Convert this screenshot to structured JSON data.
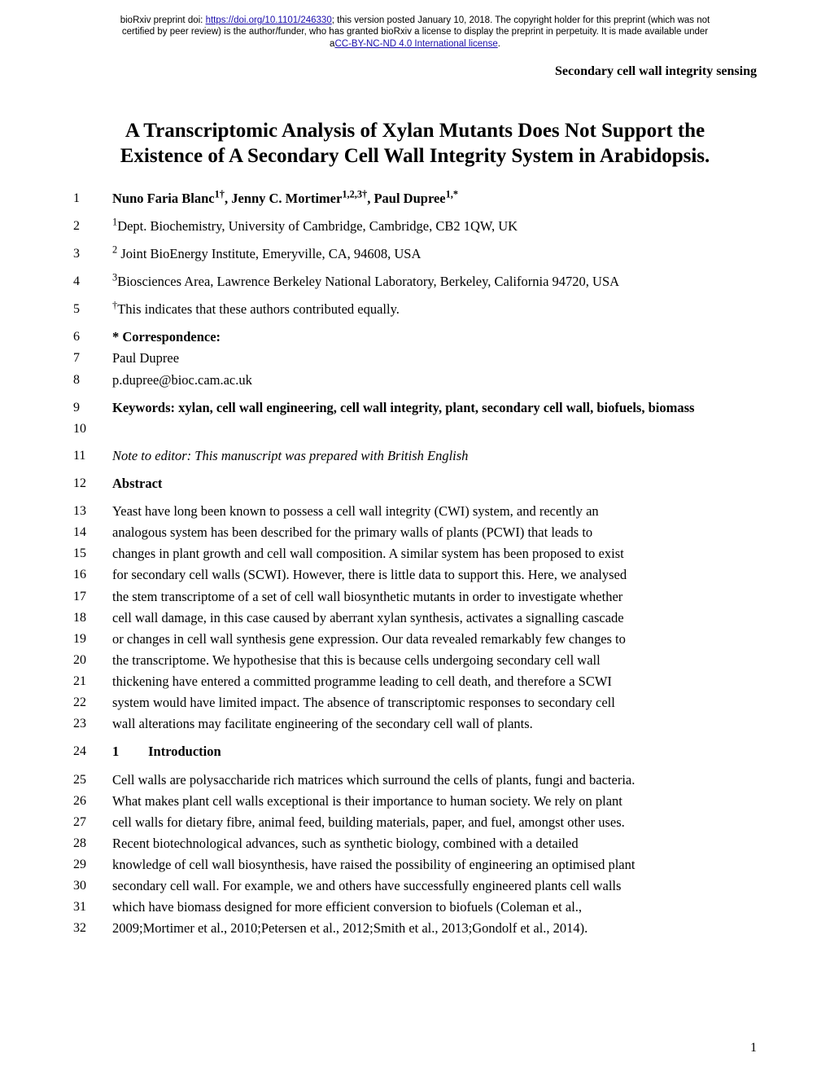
{
  "preprint": {
    "line1_prefix": "bioRxiv preprint doi: ",
    "doi_url": "https://doi.org/10.1101/246330",
    "line1_suffix": "; this version posted January 10, 2018. The copyright holder for this preprint (which was not",
    "line2": "certified by peer review) is the author/funder, who has granted bioRxiv a license to display the preprint in perpetuity. It is made available under",
    "line3_prefix": "a",
    "license_text": "CC-BY-NC-ND 4.0 International license",
    "line3_suffix": "."
  },
  "running_head": "Secondary cell wall integrity sensing",
  "title": "A Transcriptomic Analysis of Xylan Mutants Does Not Support the Existence of A Secondary Cell Wall Integrity System in Arabidopsis.",
  "authors_html": "Nuno Faria Blanc<sup>1†</sup>, Jenny C. Mortimer<sup>1,2,3†</sup>, Paul Dupree<sup>1,*</sup>",
  "affil": {
    "a1": "Dept. Biochemistry, University of Cambridge, Cambridge, CB2 1QW, UK",
    "a2": " Joint BioEnergy Institute, Emeryville, CA, 94608, USA",
    "a3": "Biosciences Area, Lawrence Berkeley National Laboratory, Berkeley, California 94720, USA"
  },
  "equal": "This indicates that these authors contributed equally.",
  "correspondence": {
    "label": "* Correspondence:",
    "name": "Paul Dupree",
    "email": "p.dupree@bioc.cam.ac.uk"
  },
  "keywords": "Keywords: xylan, cell wall engineering, cell wall integrity, plant, secondary cell wall, biofuels, biomass",
  "note": "Note to editor: This manuscript was prepared with British English",
  "abstract_label": "Abstract",
  "abstract_lines": {
    "l13": "Yeast have long been known to possess a cell wall integrity (CWI) system, and recently an",
    "l14": "analogous system has been described for the primary walls of plants (PCWI) that leads to",
    "l15": "changes in plant growth and cell wall composition. A similar system has been proposed to exist",
    "l16": "for secondary cell walls (SCWI). However, there is little data to support this. Here, we analysed",
    "l17": "the stem transcriptome of a set of cell wall biosynthetic mutants in order to investigate whether",
    "l18": "cell wall damage, in this case caused by aberrant xylan synthesis, activates a signalling cascade",
    "l19": "or changes in cell wall synthesis gene expression. Our data revealed remarkably few changes to",
    "l20": "the transcriptome. We hypothesise that this is because cells undergoing secondary cell wall",
    "l21": "thickening have entered a committed programme leading to cell death, and therefore a SCWI",
    "l22": "system would have limited impact. The absence of transcriptomic responses to secondary cell",
    "l23": "wall alterations may facilitate engineering of the secondary cell wall of plants."
  },
  "section1": {
    "num": "1",
    "title": "Introduction"
  },
  "intro_lines": {
    "l25": "Cell walls are polysaccharide rich matrices which surround the cells of plants, fungi and bacteria.",
    "l26": "What makes plant cell walls exceptional is their importance to human society. We rely on plant",
    "l27": "cell walls for dietary fibre, animal feed, building materials, paper, and fuel, amongst other uses.",
    "l28": "Recent biotechnological advances, such as synthetic biology, combined with a detailed",
    "l29": "knowledge of cell wall biosynthesis, have raised the possibility of engineering an optimised plant",
    "l30": "secondary cell wall. For example, we and others have successfully engineered plants cell walls",
    "l31": "which have biomass designed for more efficient conversion to biofuels (Coleman et al.,",
    "l32": "2009;Mortimer et al., 2010;Petersen et al., 2012;Smith et al., 2013;Gondolf et al., 2014)."
  },
  "line_numbers": {
    "n1": "1",
    "n2": "2",
    "n3": "3",
    "n4": "4",
    "n5": "5",
    "n6": "6",
    "n7": "7",
    "n8": "8",
    "n9": "9",
    "n10": "10",
    "n11": "11",
    "n12": "12",
    "n13": "13",
    "n14": "14",
    "n15": "15",
    "n16": "16",
    "n17": "17",
    "n18": "18",
    "n19": "19",
    "n20": "20",
    "n21": "21",
    "n22": "22",
    "n23": "23",
    "n24": "24",
    "n25": "25",
    "n26": "26",
    "n27": "27",
    "n28": "28",
    "n29": "29",
    "n30": "30",
    "n31": "31",
    "n32": "32"
  },
  "page_number": "1"
}
